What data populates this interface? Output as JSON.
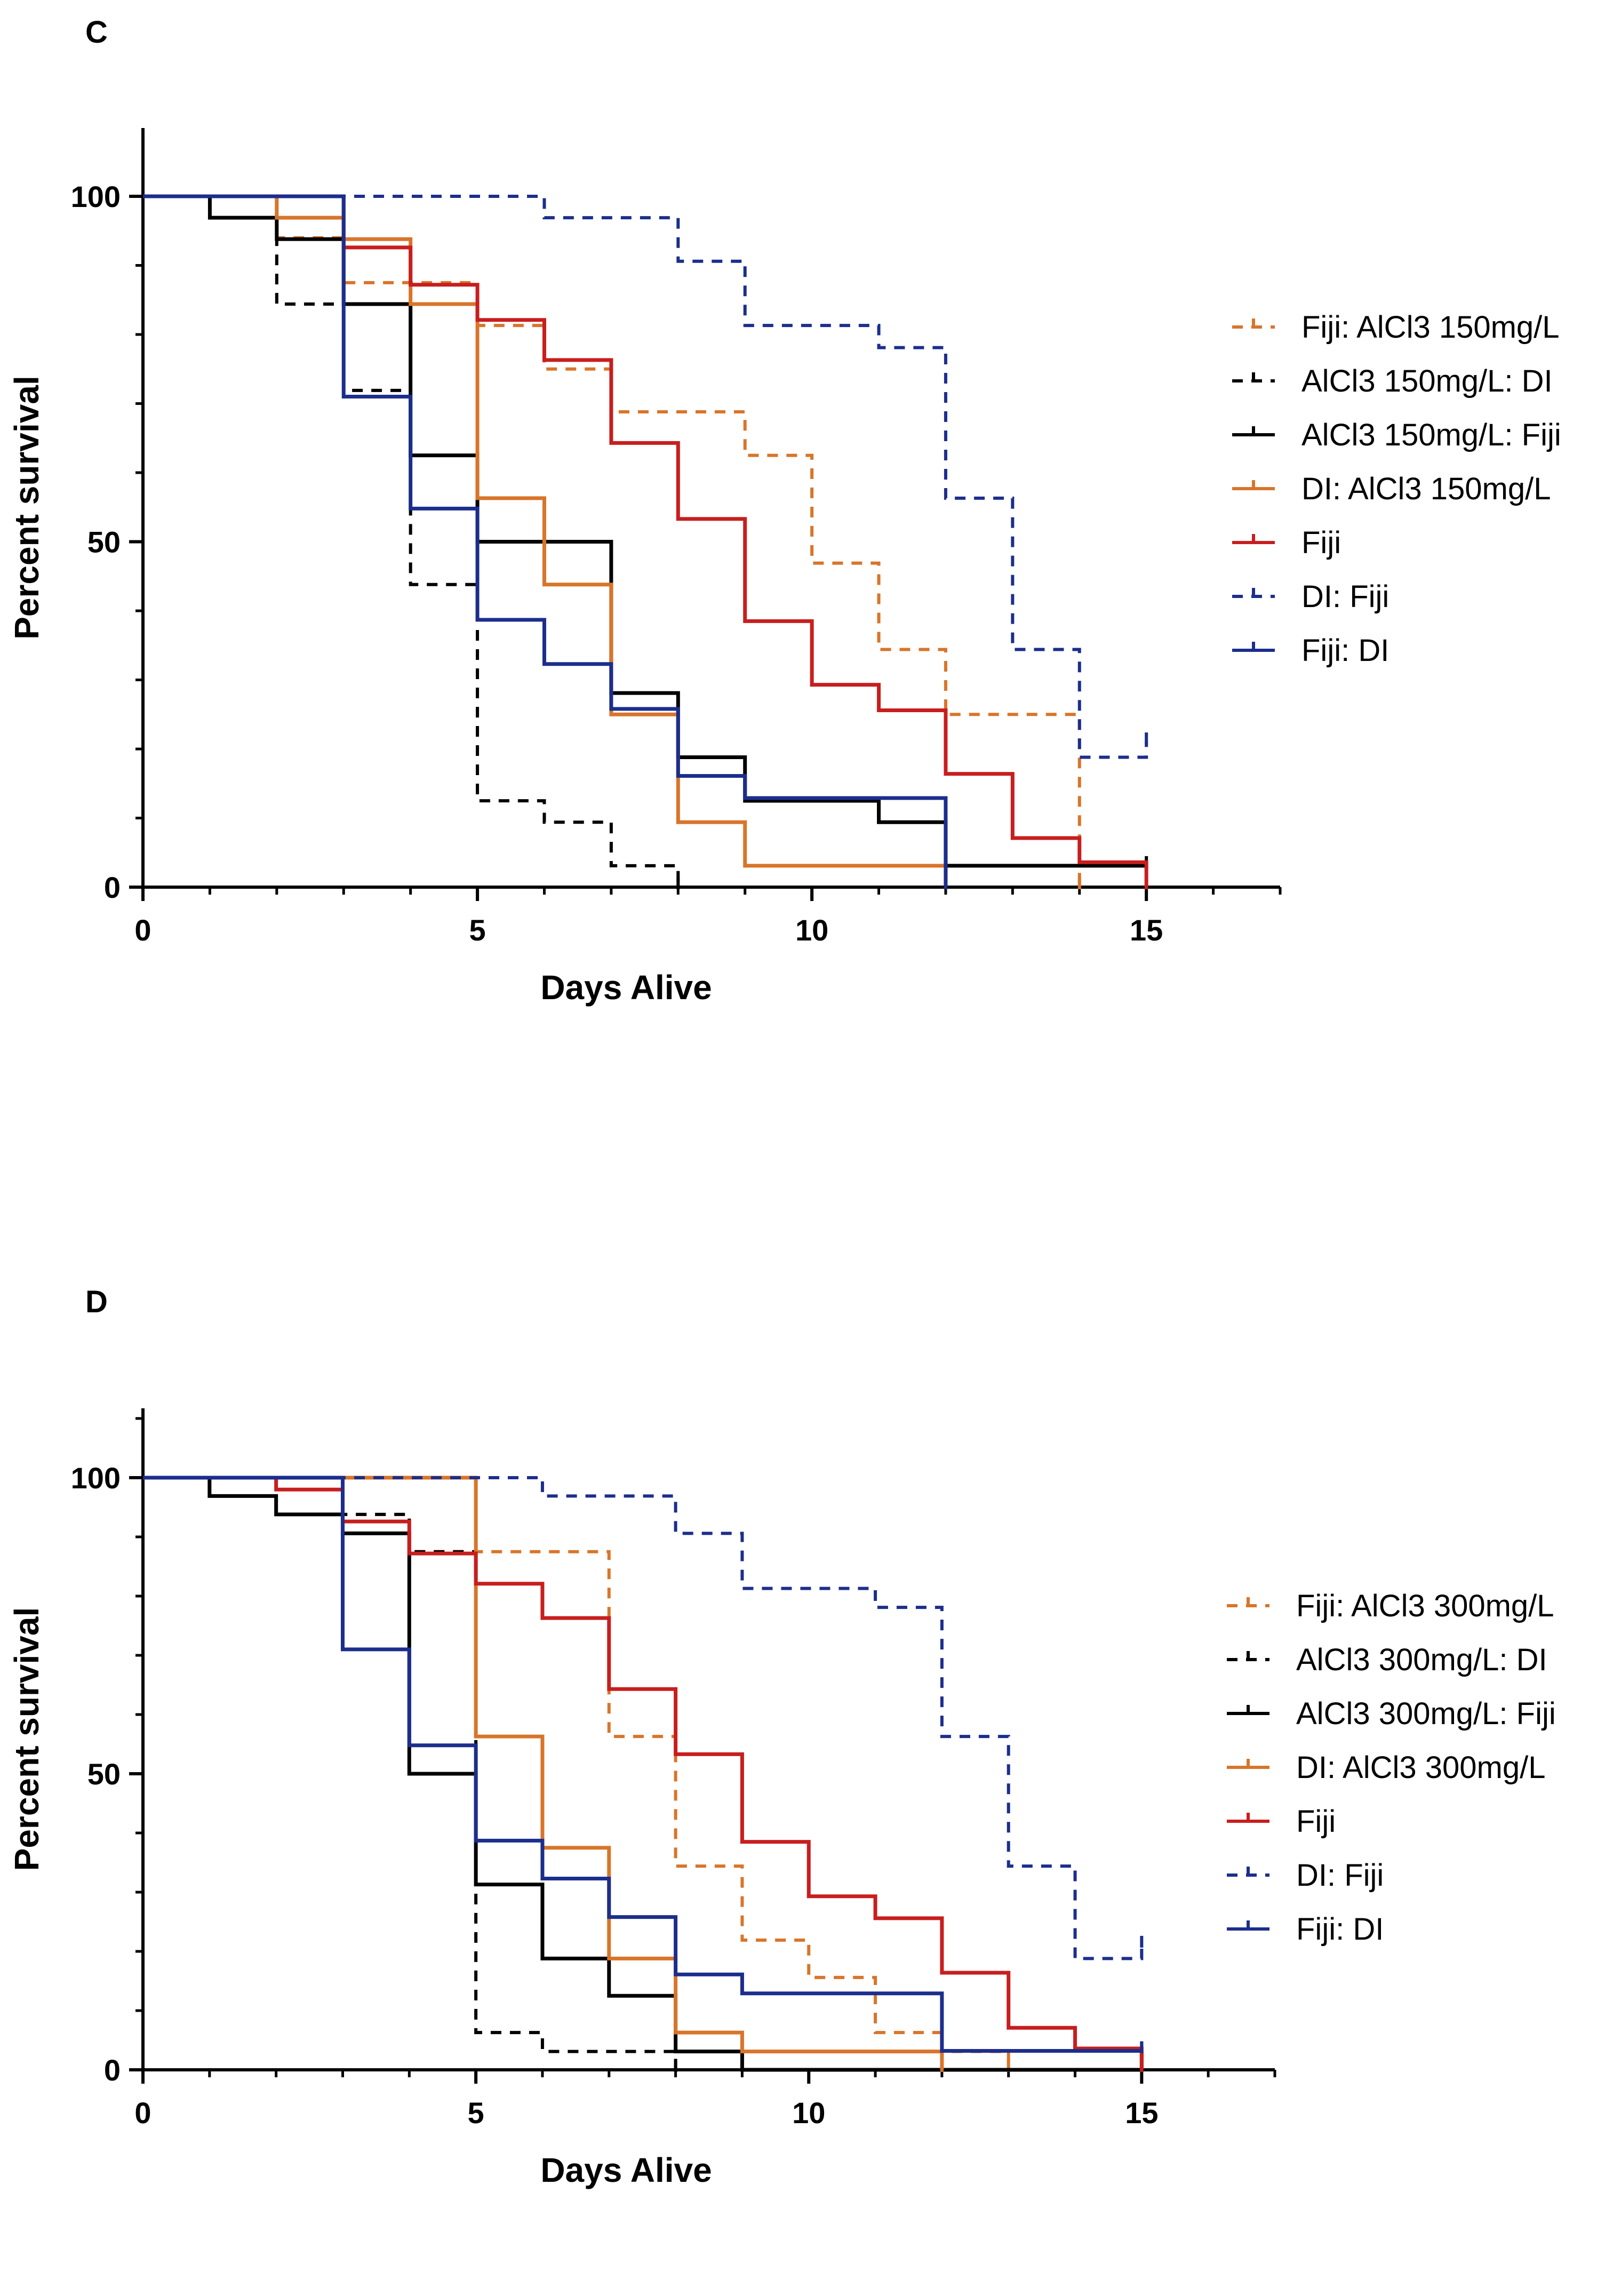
{
  "chart_data": [
    {
      "type": "line",
      "panel_label": "C",
      "title": "",
      "xlabel": "Days Alive",
      "ylabel": "Percent survival",
      "xlim": [
        0,
        17
      ],
      "ylim": [
        0,
        110
      ],
      "x_ticks": [
        0,
        5,
        10,
        15
      ],
      "y_ticks": [
        0,
        50,
        100
      ],
      "grid": false,
      "legend_position": "right",
      "series": [
        {
          "name": "Fiji: AlCl3 150mg/L",
          "color": "#D8752A",
          "dash": "dashed",
          "x": [
            0,
            2,
            3,
            4,
            5,
            6,
            7,
            8,
            9,
            10,
            11,
            12,
            14
          ],
          "y": [
            100,
            94,
            87.5,
            87.5,
            81.3,
            75,
            68.8,
            68.8,
            62.5,
            46.9,
            34.4,
            25,
            0
          ]
        },
        {
          "name": "AlCl3 150mg/L: DI",
          "color": "#000000",
          "dash": "dashed",
          "x": [
            0,
            2,
            3,
            4,
            5,
            6,
            7,
            8
          ],
          "y": [
            100,
            84.4,
            71.9,
            43.8,
            12.5,
            9.4,
            3.1,
            0
          ]
        },
        {
          "name": "AlCl3 150mg/L: Fiji",
          "color": "#000000",
          "dash": "solid",
          "x": [
            0,
            1,
            2,
            3,
            4,
            5,
            7,
            8,
            9,
            11,
            12,
            15
          ],
          "y": [
            100,
            96.9,
            93.8,
            84.4,
            62.5,
            50,
            28.1,
            18.8,
            12.5,
            9.4,
            3.1,
            3.1
          ]
        },
        {
          "name": "DI: AlCl3 150mg/L",
          "color": "#D8752A",
          "dash": "solid",
          "x": [
            0,
            2,
            3,
            4,
            5,
            6,
            7,
            8,
            9,
            12
          ],
          "y": [
            100,
            96.9,
            93.8,
            84.4,
            56.3,
            43.8,
            25,
            9.4,
            3.1,
            0
          ]
        },
        {
          "name": "Fiji",
          "color": "#C81E1E",
          "dash": "solid",
          "x": [
            0,
            3,
            4,
            5,
            6,
            7,
            8,
            9,
            10,
            11,
            12,
            13,
            14,
            15
          ],
          "y": [
            100,
            92.6,
            87.2,
            82.1,
            76.3,
            64.3,
            53.3,
            38.5,
            29.3,
            25.6,
            16.4,
            7.1,
            3.6,
            0
          ]
        },
        {
          "name": "DI: Fiji",
          "color": "#1C2E8C",
          "dash": "dashed",
          "x": [
            0,
            6,
            8,
            9,
            11,
            12,
            13,
            14,
            15
          ],
          "y": [
            100,
            96.9,
            90.6,
            81.3,
            78.1,
            56.3,
            34.4,
            18.8,
            21
          ]
        },
        {
          "name": "Fiji: DI",
          "color": "#1C2E8C",
          "dash": "solid",
          "x": [
            0,
            3,
            4,
            5,
            6,
            7,
            8,
            9,
            12
          ],
          "y": [
            100,
            71,
            54.8,
            38.7,
            32.3,
            25.8,
            16.1,
            12.9,
            0
          ]
        }
      ]
    },
    {
      "type": "line",
      "panel_label": "D",
      "title": "",
      "xlabel": "Days Alive",
      "ylabel": "Percent survival",
      "xlim": [
        0,
        17
      ],
      "ylim": [
        0,
        110
      ],
      "x_ticks": [
        0,
        5,
        10,
        15
      ],
      "y_ticks": [
        0,
        50,
        100
      ],
      "grid": false,
      "legend_position": "right",
      "series": [
        {
          "name": "Fiji: AlCl3 300mg/L",
          "color": "#D8752A",
          "dash": "dashed",
          "x": [
            0,
            3,
            4,
            5,
            7,
            8,
            9,
            10,
            11,
            12,
            13
          ],
          "y": [
            100,
            93.8,
            87.5,
            87.5,
            56.3,
            34.4,
            21.9,
            15.6,
            6.3,
            3.1,
            0
          ]
        },
        {
          "name": "AlCl3 300mg/L: DI",
          "color": "#000000",
          "dash": "dashed",
          "x": [
            0,
            3,
            4,
            5,
            6,
            8
          ],
          "y": [
            100,
            93.8,
            87.5,
            6.3,
            3.1,
            0
          ]
        },
        {
          "name": "AlCl3 300mg/L: Fiji",
          "color": "#000000",
          "dash": "solid",
          "x": [
            0,
            1,
            2,
            3,
            4,
            5,
            6,
            7,
            8,
            9,
            15
          ],
          "y": [
            100,
            96.9,
            93.8,
            90.6,
            50,
            31.3,
            18.8,
            12.5,
            3.1,
            0,
            3.1
          ]
        },
        {
          "name": "DI: AlCl3 300mg/L",
          "color": "#D8752A",
          "dash": "solid",
          "x": [
            0,
            5,
            6,
            7,
            8,
            9,
            12
          ],
          "y": [
            100,
            56.3,
            37.5,
            18.8,
            6.3,
            3.1,
            0
          ]
        },
        {
          "name": "Fiji",
          "color": "#C81E1E",
          "dash": "solid",
          "x": [
            0,
            2,
            3,
            4,
            5,
            6,
            7,
            8,
            9,
            10,
            11,
            12,
            13,
            14,
            15
          ],
          "y": [
            100,
            98,
            92.6,
            87.2,
            82.1,
            76.3,
            64.3,
            53.3,
            38.5,
            29.3,
            25.6,
            16.4,
            7.1,
            3.6,
            0
          ]
        },
        {
          "name": "DI: Fiji",
          "color": "#1C2E8C",
          "dash": "dashed",
          "x": [
            0,
            6,
            8,
            9,
            11,
            12,
            13,
            14,
            15
          ],
          "y": [
            100,
            96.9,
            90.6,
            81.3,
            78.1,
            56.3,
            34.4,
            18.8,
            21
          ]
        },
        {
          "name": "Fiji: DI",
          "color": "#1C2E8C",
          "dash": "solid",
          "x": [
            0,
            3,
            4,
            5,
            6,
            7,
            8,
            9,
            12,
            15
          ],
          "y": [
            100,
            71,
            54.8,
            38.7,
            32.3,
            25.8,
            16.1,
            12.9,
            3.2,
            3.2
          ]
        }
      ]
    }
  ]
}
